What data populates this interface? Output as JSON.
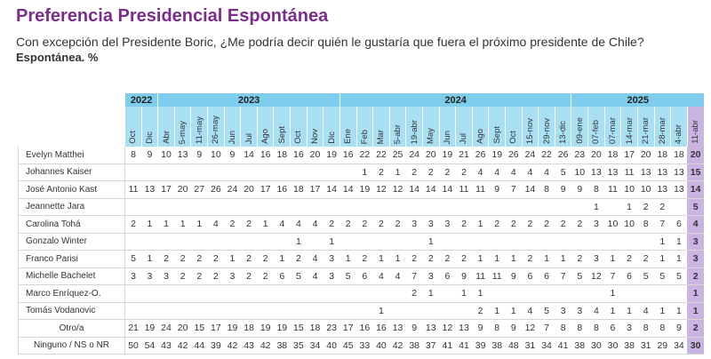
{
  "header": {
    "title": "Preferencia Presidencial Espontánea",
    "subtitle": "Con excepción del Presidente Boric, ¿Me podría decir quién le gustaría que fuera el próximo presidente de Chile?",
    "note": "Espontánea. %"
  },
  "table": {
    "groups": [
      {
        "year": "2022",
        "months": [
          "Oct",
          "Dic"
        ]
      },
      {
        "year": "2023",
        "months": [
          "Abr",
          "5-may",
          "11-may",
          "26-may",
          "Jun",
          "Jul",
          "Ago",
          "Sept",
          "Oct",
          "Nov",
          "Dic"
        ]
      },
      {
        "year": "2024",
        "months": [
          "Ene",
          "Feb",
          "Mar",
          "5-abr",
          "19-abr",
          "May",
          "Jun",
          "Jul",
          "Ago",
          "Sept",
          "Oct",
          "15-nov",
          "29-nov",
          "13-dic"
        ]
      },
      {
        "year": "2025",
        "months": [
          "09-ene",
          "07-feb",
          "07-mar",
          "14-mar",
          "21-mar",
          "28-mar",
          "4-abr",
          "11-abr"
        ]
      }
    ],
    "rows": [
      {
        "name": "Evelyn Matthei",
        "values": [
          8,
          9,
          10,
          13,
          9,
          10,
          9,
          14,
          16,
          18,
          16,
          20,
          19,
          16,
          22,
          22,
          25,
          24,
          20,
          19,
          21,
          26,
          19,
          26,
          24,
          22,
          26,
          23,
          20,
          18,
          17,
          20,
          18,
          18,
          20
        ]
      },
      {
        "name": "Johannes Kaiser",
        "values": [
          null,
          null,
          null,
          null,
          null,
          null,
          null,
          null,
          null,
          null,
          null,
          null,
          null,
          null,
          1,
          2,
          1,
          2,
          2,
          2,
          2,
          4,
          4,
          4,
          4,
          4,
          5,
          10,
          13,
          13,
          11,
          13,
          13,
          13,
          15
        ]
      },
      {
        "name": "José Antonio Kast",
        "values": [
          11,
          13,
          17,
          20,
          27,
          26,
          24,
          20,
          17,
          16,
          18,
          17,
          14,
          14,
          19,
          12,
          12,
          14,
          14,
          14,
          11,
          11,
          9,
          7,
          14,
          8,
          9,
          9,
          8,
          11,
          10,
          10,
          13,
          13,
          14
        ]
      },
      {
        "name": "Jeannette Jara",
        "values": [
          null,
          null,
          null,
          null,
          null,
          null,
          null,
          null,
          null,
          null,
          null,
          null,
          null,
          null,
          null,
          null,
          null,
          null,
          null,
          null,
          null,
          null,
          null,
          null,
          null,
          null,
          null,
          null,
          1,
          null,
          1,
          2,
          2,
          null,
          5
        ]
      },
      {
        "name": "Carolina Tohá",
        "values": [
          2,
          1,
          1,
          1,
          1,
          4,
          2,
          2,
          1,
          4,
          4,
          4,
          2,
          2,
          2,
          2,
          2,
          3,
          3,
          3,
          2,
          1,
          2,
          2,
          2,
          2,
          2,
          2,
          3,
          10,
          10,
          8,
          7,
          6,
          4
        ]
      },
      {
        "name": "Gonzalo Winter",
        "values": [
          null,
          null,
          null,
          null,
          null,
          null,
          null,
          null,
          null,
          null,
          1,
          null,
          1,
          null,
          null,
          null,
          null,
          null,
          1,
          null,
          null,
          null,
          null,
          null,
          null,
          null,
          null,
          null,
          null,
          null,
          null,
          null,
          1,
          1,
          3
        ]
      },
      {
        "name": "Franco Parisi",
        "values": [
          5,
          1,
          2,
          2,
          2,
          2,
          1,
          2,
          2,
          1,
          2,
          4,
          3,
          1,
          2,
          1,
          1,
          2,
          2,
          2,
          2,
          1,
          1,
          1,
          2,
          1,
          1,
          2,
          3,
          1,
          2,
          2,
          1,
          1,
          3
        ]
      },
      {
        "name": "Michelle Bachelet",
        "values": [
          3,
          3,
          3,
          2,
          2,
          2,
          3,
          2,
          2,
          6,
          5,
          4,
          3,
          5,
          6,
          4,
          4,
          7,
          3,
          6,
          9,
          11,
          11,
          9,
          6,
          6,
          7,
          5,
          12,
          7,
          6,
          5,
          5,
          5,
          2
        ]
      },
      {
        "name": "Marco Enríquez-O.",
        "values": [
          null,
          null,
          null,
          null,
          null,
          null,
          null,
          null,
          null,
          null,
          null,
          null,
          null,
          null,
          null,
          null,
          null,
          2,
          1,
          null,
          1,
          1,
          null,
          null,
          null,
          null,
          null,
          null,
          null,
          1,
          null,
          null,
          null,
          null,
          1
        ]
      },
      {
        "name": "Tomás Vodanovic",
        "values": [
          null,
          null,
          null,
          null,
          null,
          null,
          null,
          null,
          null,
          null,
          null,
          null,
          null,
          null,
          null,
          1,
          null,
          null,
          null,
          null,
          null,
          2,
          1,
          1,
          4,
          5,
          3,
          3,
          4,
          1,
          1,
          4,
          1,
          1,
          1
        ]
      },
      {
        "name": "Otro/a",
        "values": [
          21,
          19,
          24,
          20,
          15,
          17,
          19,
          18,
          19,
          19,
          15,
          18,
          23,
          17,
          16,
          16,
          13,
          9,
          13,
          12,
          13,
          9,
          8,
          9,
          12,
          7,
          8,
          8,
          8,
          6,
          3,
          8,
          8,
          9,
          2
        ]
      },
      {
        "name": "Ninguno / NS o NR",
        "values": [
          50,
          54,
          43,
          42,
          44,
          39,
          42,
          43,
          42,
          38,
          35,
          34,
          40,
          45,
          33,
          40,
          42,
          38,
          37,
          41,
          41,
          39,
          38,
          48,
          31,
          34,
          41,
          38,
          30,
          30,
          38,
          31,
          29,
          34,
          30
        ]
      }
    ]
  }
}
